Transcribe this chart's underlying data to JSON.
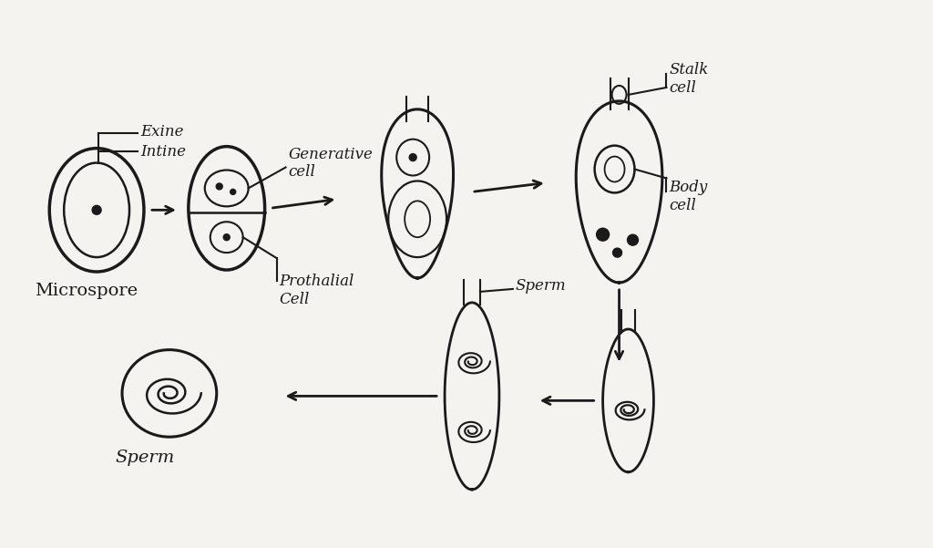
{
  "bg_color": "#f5f3f0",
  "line_color": "#1a1a1a",
  "lw_outer": 2.2,
  "lw_inner": 1.6,
  "labels": {
    "exine": "Exine",
    "intine": "Intine",
    "microspore": "Microspore",
    "generative_cell": "Generative\ncell",
    "prothalial_cell": "Prothalial\nCell",
    "stalk_cell": "Stalk\ncell",
    "body_cell": "Body\ncell",
    "sperm_tube": "Sperm",
    "sperm_free": "Sperm"
  }
}
